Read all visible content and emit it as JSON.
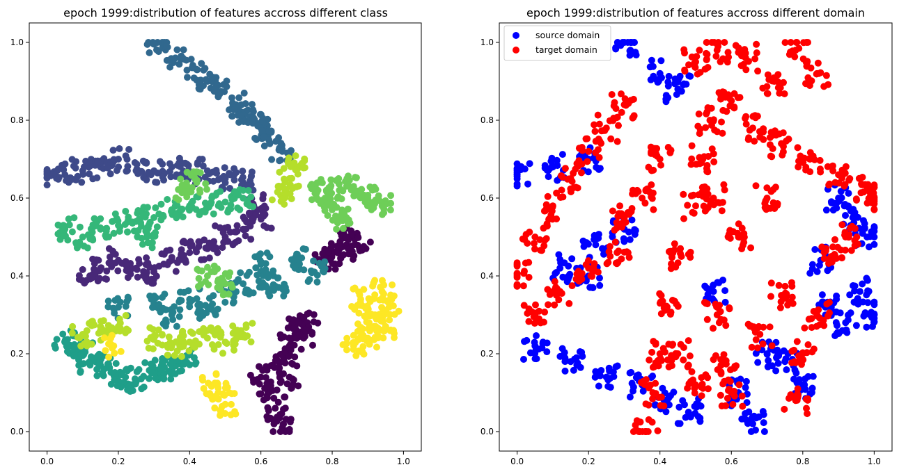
{
  "figure": {
    "chart_count": 2
  },
  "chart_data": [
    {
      "type": "scatter",
      "title": "epoch 1999:distribution of features accross different class",
      "xlabel": "",
      "ylabel": "",
      "xlim": [
        -0.05,
        1.05
      ],
      "ylim": [
        -0.05,
        1.05
      ],
      "xticks": [
        0.0,
        0.2,
        0.4,
        0.6,
        0.8,
        1.0
      ],
      "yticks": [
        0.0,
        0.2,
        0.4,
        0.6,
        0.8,
        1.0
      ],
      "xtick_labels": [
        "0.0",
        "0.2",
        "0.4",
        "0.6",
        "0.8",
        "1.0"
      ],
      "ytick_labels": [
        "0.0",
        "0.2",
        "0.4",
        "0.6",
        "0.8",
        "1.0"
      ],
      "grid": false,
      "colormap": "viridis",
      "clusters": [
        {
          "class": 0,
          "color": "#440154",
          "points": [
            [
              0.66,
              0.18
            ],
            [
              0.62,
              0.1
            ],
            [
              0.68,
              0.22
            ],
            [
              0.7,
              0.26
            ],
            [
              0.64,
              0.06
            ],
            [
              0.66,
              0.01
            ],
            [
              0.72,
              0.24
            ],
            [
              0.6,
              0.14
            ],
            [
              0.68,
              0.14
            ],
            [
              0.73,
              0.28
            ],
            [
              0.8,
              0.46
            ],
            [
              0.84,
              0.48
            ],
            [
              0.78,
              0.44
            ],
            [
              0.88,
              0.47
            ],
            [
              0.85,
              0.5
            ]
          ]
        },
        {
          "class": 1,
          "color": "#482878",
          "points": [
            [
              0.15,
              0.42
            ],
            [
              0.25,
              0.42
            ],
            [
              0.35,
              0.44
            ],
            [
              0.45,
              0.47
            ],
            [
              0.55,
              0.52
            ],
            [
              0.6,
              0.55
            ],
            [
              0.5,
              0.5
            ],
            [
              0.3,
              0.41
            ],
            [
              0.2,
              0.44
            ],
            [
              0.12,
              0.4
            ],
            [
              0.4,
              0.46
            ],
            [
              0.58,
              0.58
            ]
          ]
        },
        {
          "class": 2,
          "color": "#3e4a89",
          "points": [
            [
              0.0,
              0.66
            ],
            [
              0.05,
              0.66
            ],
            [
              0.1,
              0.67
            ],
            [
              0.15,
              0.68
            ],
            [
              0.2,
              0.7
            ],
            [
              0.25,
              0.67
            ],
            [
              0.35,
              0.68
            ],
            [
              0.45,
              0.67
            ],
            [
              0.5,
              0.65
            ],
            [
              0.55,
              0.64
            ],
            [
              0.3,
              0.67
            ],
            [
              0.4,
              0.66
            ]
          ]
        },
        {
          "class": 3,
          "color": "#31688e",
          "points": [
            [
              0.31,
              1.0
            ],
            [
              0.36,
              0.96
            ],
            [
              0.42,
              0.93
            ],
            [
              0.48,
              0.89
            ],
            [
              0.53,
              0.84
            ],
            [
              0.58,
              0.8
            ],
            [
              0.62,
              0.76
            ],
            [
              0.66,
              0.72
            ],
            [
              0.45,
              0.9
            ],
            [
              0.55,
              0.82
            ],
            [
              0.6,
              0.78
            ]
          ]
        },
        {
          "class": 4,
          "color": "#26828e",
          "points": [
            [
              0.2,
              0.32
            ],
            [
              0.3,
              0.33
            ],
            [
              0.4,
              0.34
            ],
            [
              0.5,
              0.36
            ],
            [
              0.55,
              0.38
            ],
            [
              0.62,
              0.4
            ],
            [
              0.7,
              0.44
            ],
            [
              0.75,
              0.41
            ],
            [
              0.65,
              0.37
            ],
            [
              0.45,
              0.32
            ],
            [
              0.35,
              0.3
            ],
            [
              0.6,
              0.43
            ]
          ]
        },
        {
          "class": 5,
          "color": "#1f9e89",
          "points": [
            [
              0.05,
              0.23
            ],
            [
              0.1,
              0.2
            ],
            [
              0.15,
              0.17
            ],
            [
              0.2,
              0.15
            ],
            [
              0.25,
              0.13
            ],
            [
              0.3,
              0.15
            ],
            [
              0.35,
              0.17
            ],
            [
              0.4,
              0.2
            ],
            [
              0.12,
              0.18
            ],
            [
              0.22,
              0.14
            ],
            [
              0.32,
              0.16
            ],
            [
              0.08,
              0.22
            ]
          ]
        },
        {
          "class": 6,
          "color": "#35b779",
          "points": [
            [
              0.05,
              0.52
            ],
            [
              0.1,
              0.5
            ],
            [
              0.15,
              0.52
            ],
            [
              0.2,
              0.53
            ],
            [
              0.25,
              0.54
            ],
            [
              0.3,
              0.55
            ],
            [
              0.35,
              0.57
            ],
            [
              0.4,
              0.58
            ],
            [
              0.45,
              0.58
            ],
            [
              0.5,
              0.59
            ],
            [
              0.55,
              0.6
            ],
            [
              0.28,
              0.5
            ]
          ]
        },
        {
          "class": 7,
          "color": "#6ece58",
          "points": [
            [
              0.78,
              0.6
            ],
            [
              0.82,
              0.62
            ],
            [
              0.86,
              0.63
            ],
            [
              0.9,
              0.6
            ],
            [
              0.94,
              0.58
            ],
            [
              0.8,
              0.57
            ],
            [
              0.84,
              0.55
            ],
            [
              0.76,
              0.62
            ],
            [
              0.45,
              0.4
            ],
            [
              0.5,
              0.38
            ],
            [
              0.42,
              0.64
            ],
            [
              0.38,
              0.62
            ]
          ]
        },
        {
          "class": 8,
          "color": "#b5de2b",
          "points": [
            [
              0.1,
              0.25
            ],
            [
              0.15,
              0.26
            ],
            [
              0.2,
              0.27
            ],
            [
              0.3,
              0.24
            ],
            [
              0.35,
              0.22
            ],
            [
              0.4,
              0.23
            ],
            [
              0.45,
              0.24
            ],
            [
              0.5,
              0.23
            ],
            [
              0.55,
              0.25
            ],
            [
              0.66,
              0.6
            ],
            [
              0.68,
              0.65
            ],
            [
              0.7,
              0.68
            ]
          ]
        },
        {
          "class": 9,
          "color": "#fde725",
          "points": [
            [
              0.88,
              0.34
            ],
            [
              0.92,
              0.3
            ],
            [
              0.95,
              0.27
            ],
            [
              0.9,
              0.24
            ],
            [
              0.86,
              0.22
            ],
            [
              0.94,
              0.36
            ],
            [
              0.96,
              0.32
            ],
            [
              0.48,
              0.1
            ],
            [
              0.5,
              0.07
            ],
            [
              0.46,
              0.12
            ],
            [
              0.18,
              0.22
            ],
            [
              0.9,
              0.28
            ]
          ]
        }
      ]
    },
    {
      "type": "scatter",
      "title": "epoch 1999:distribution of features accross different domain",
      "xlabel": "",
      "ylabel": "",
      "xlim": [
        -0.05,
        1.05
      ],
      "ylim": [
        -0.05,
        1.05
      ],
      "xticks": [
        0.0,
        0.2,
        0.4,
        0.6,
        0.8,
        1.0
      ],
      "yticks": [
        0.0,
        0.2,
        0.4,
        0.6,
        0.8,
        1.0
      ],
      "xtick_labels": [
        "0.0",
        "0.2",
        "0.4",
        "0.6",
        "0.8",
        "1.0"
      ],
      "ytick_labels": [
        "0.0",
        "0.2",
        "0.4",
        "0.6",
        "0.8",
        "1.0"
      ],
      "grid": false,
      "legend_position": "upper-left",
      "series": [
        {
          "name": "source domain",
          "color": "#0000ff",
          "points": [
            [
              0.0,
              0.66
            ],
            [
              0.1,
              0.68
            ],
            [
              0.2,
              0.7
            ],
            [
              0.31,
              1.0
            ],
            [
              0.4,
              0.92
            ],
            [
              0.45,
              0.88
            ],
            [
              0.05,
              0.22
            ],
            [
              0.15,
              0.18
            ],
            [
              0.25,
              0.14
            ],
            [
              0.35,
              0.12
            ],
            [
              0.42,
              0.08
            ],
            [
              0.48,
              0.05
            ],
            [
              0.62,
              0.1
            ],
            [
              0.66,
              0.02
            ],
            [
              0.7,
              0.2
            ],
            [
              0.88,
              0.32
            ],
            [
              0.92,
              0.28
            ],
            [
              0.96,
              0.36
            ],
            [
              1.0,
              0.3
            ],
            [
              0.94,
              0.55
            ],
            [
              0.98,
              0.5
            ],
            [
              0.12,
              0.42
            ],
            [
              0.2,
              0.4
            ],
            [
              0.22,
              0.48
            ],
            [
              0.3,
              0.52
            ],
            [
              0.55,
              0.36
            ],
            [
              0.85,
              0.44
            ],
            [
              0.9,
              0.6
            ],
            [
              0.8,
              0.12
            ],
            [
              0.75,
              0.18
            ]
          ]
        },
        {
          "name": "target domain",
          "color": "#ff0000",
          "points": [
            [
              0.0,
              0.4
            ],
            [
              0.05,
              0.5
            ],
            [
              0.1,
              0.58
            ],
            [
              0.15,
              0.65
            ],
            [
              0.2,
              0.72
            ],
            [
              0.25,
              0.78
            ],
            [
              0.3,
              0.84
            ],
            [
              0.05,
              0.3
            ],
            [
              0.12,
              0.36
            ],
            [
              0.2,
              0.42
            ],
            [
              0.28,
              0.46
            ],
            [
              0.36,
              0.0
            ],
            [
              0.38,
              0.1
            ],
            [
              0.4,
              0.2
            ],
            [
              0.42,
              0.32
            ],
            [
              0.46,
              0.45
            ],
            [
              0.5,
              0.58
            ],
            [
              0.52,
              0.7
            ],
            [
              0.54,
              0.8
            ],
            [
              0.5,
              0.95
            ],
            [
              0.56,
              0.98
            ],
            [
              0.64,
              0.96
            ],
            [
              0.72,
              0.9
            ],
            [
              0.78,
              0.98
            ],
            [
              0.84,
              0.92
            ],
            [
              0.6,
              0.85
            ],
            [
              0.66,
              0.78
            ],
            [
              0.74,
              0.74
            ],
            [
              0.82,
              0.7
            ],
            [
              0.9,
              0.66
            ],
            [
              0.98,
              0.62
            ],
            [
              1.0,
              0.6
            ],
            [
              0.56,
              0.3
            ],
            [
              0.58,
              0.18
            ],
            [
              0.6,
              0.1
            ],
            [
              0.68,
              0.25
            ],
            [
              0.74,
              0.35
            ],
            [
              0.78,
              0.08
            ],
            [
              0.8,
              0.2
            ],
            [
              0.84,
              0.3
            ],
            [
              0.88,
              0.45
            ],
            [
              0.92,
              0.5
            ],
            [
              0.45,
              0.2
            ],
            [
              0.5,
              0.12
            ],
            [
              0.55,
              0.6
            ],
            [
              0.62,
              0.5
            ],
            [
              0.4,
              0.7
            ],
            [
              0.35,
              0.6
            ],
            [
              0.3,
              0.55
            ],
            [
              0.7,
              0.6
            ]
          ]
        }
      ]
    }
  ]
}
